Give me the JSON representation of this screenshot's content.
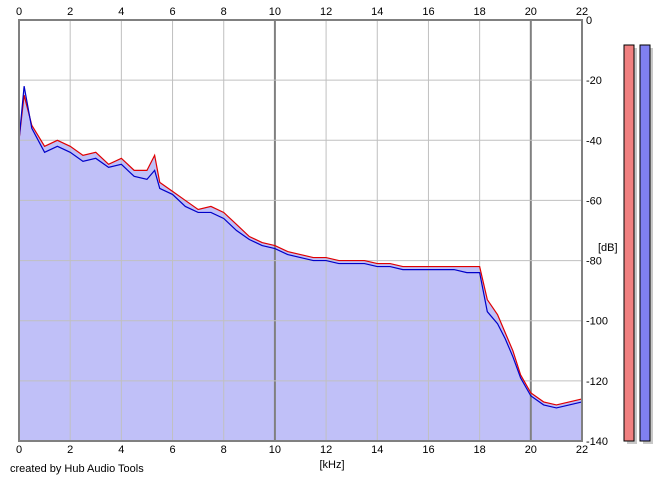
{
  "footer": {
    "credit": "created by Hub Audio Tools"
  },
  "colors": {
    "fill": "#c0c0f8",
    "grid": "#c0c0c0",
    "grid_major": "#808080",
    "left_channel": "#e00000",
    "right_channel": "#0000c8",
    "meter_left": "#f08080",
    "meter_right": "#8080f0"
  },
  "chart_data": {
    "type": "area",
    "xlabel": "[kHz]",
    "ylabel": "[dB]",
    "xlim": [
      0,
      22
    ],
    "ylim": [
      -140,
      0
    ],
    "xticks": [
      "0",
      "2",
      "4",
      "6",
      "8",
      "10",
      "12",
      "14",
      "16",
      "18",
      "20",
      "22"
    ],
    "yticks": [
      "0",
      "-20",
      "-40",
      "-60",
      "-80",
      "-100",
      "-120",
      "-140"
    ],
    "grid": true,
    "x": [
      0,
      0.2,
      0.5,
      1,
      1.5,
      2,
      2.5,
      3,
      3.5,
      4,
      4.5,
      5,
      5.3,
      5.5,
      6,
      6.5,
      7,
      7.5,
      8,
      8.5,
      9,
      9.5,
      10,
      10.5,
      11,
      11.5,
      12,
      12.5,
      13,
      13.5,
      14,
      14.5,
      15,
      15.5,
      16,
      16.5,
      17,
      17.5,
      18,
      18.3,
      18.7,
      19,
      19.3,
      19.6,
      20,
      20.5,
      21,
      21.5,
      22
    ],
    "series": [
      {
        "values": [
          -40,
          -25,
          -35,
          -42,
          -40,
          -42,
          -45,
          -44,
          -48,
          -46,
          -50,
          -50,
          -45,
          -54,
          -57,
          -60,
          -63,
          -62,
          -64,
          -68,
          -72,
          -74,
          -75,
          -77,
          -78,
          -79,
          -79,
          -80,
          -80,
          -80,
          -81,
          -81,
          -82,
          -82,
          -82,
          -82,
          -82,
          -82,
          -82,
          -93,
          -98,
          -104,
          -110,
          -118,
          -124,
          -127,
          -128,
          -127,
          -126
        ]
      },
      {
        "values": [
          -40,
          -22,
          -36,
          -44,
          -42,
          -44,
          -47,
          -46,
          -49,
          -48,
          -52,
          -53,
          -50,
          -56,
          -58,
          -62,
          -64,
          -64,
          -66,
          -70,
          -73,
          -75,
          -76,
          -78,
          -79,
          -80,
          -80,
          -81,
          -81,
          -81,
          -82,
          -82,
          -83,
          -83,
          -83,
          -83,
          -83,
          -84,
          -84,
          -97,
          -101,
          -106,
          -112,
          -119,
          -125,
          -128,
          -129,
          -128,
          -127
        ]
      }
    ],
    "meters": [
      {
        "level": -140
      },
      {
        "level": -140
      }
    ]
  }
}
